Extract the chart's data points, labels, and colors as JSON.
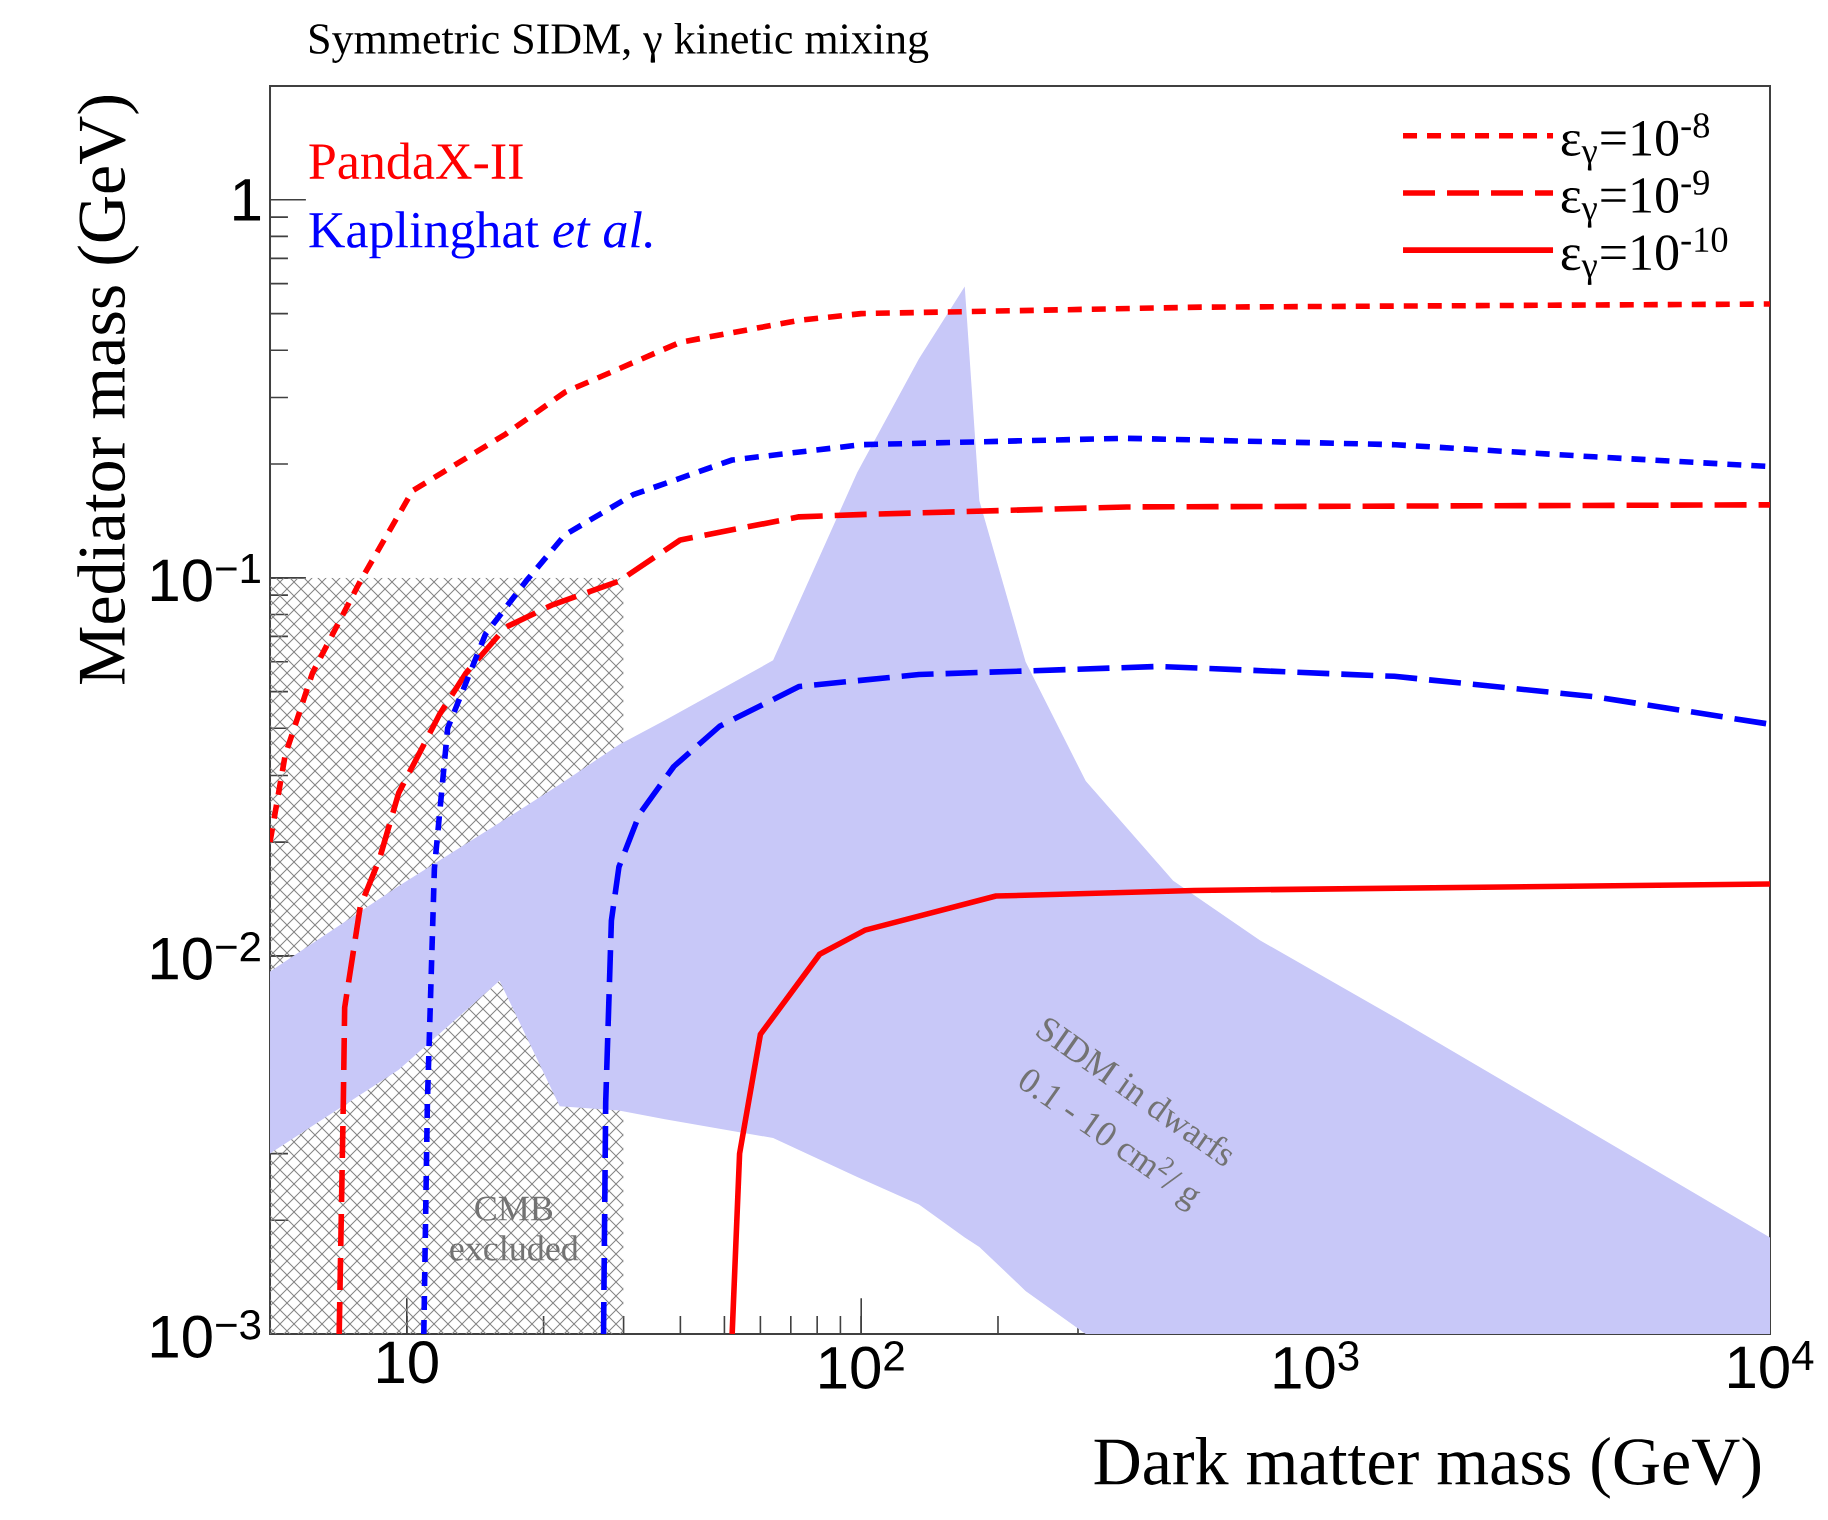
{
  "chart_data": {
    "type": "line",
    "title": "Symmetric SIDM, γ kinetic mixing",
    "xlabel": "Dark matter mass (GeV)",
    "ylabel": "Mediator mass (GeV)",
    "log": "xy",
    "xlim": [
      5,
      10000
    ],
    "ylim": [
      0.001,
      2
    ],
    "xticks": [
      10,
      {
        "value": 100,
        "label": "10$^{2}$"
      },
      {
        "value": 1000,
        "label": "10$^{3}$"
      },
      {
        "value": 10000,
        "label": "10$^{4}$"
      }
    ],
    "yticks": [
      {
        "value": 0.001,
        "label": "10$^{−3}$"
      },
      {
        "value": 0.01,
        "label": "10$^{−2}$"
      },
      {
        "value": 0.1,
        "label": "10$^{−1}$"
      },
      1
    ],
    "legend": "top right",
    "series": [
      {
        "type": "area",
        "color": "#808080",
        "x": [
          5,
          30
        ],
        "values": [
          0.1,
          0.1
        ]
      },
      {
        "type": "area",
        "color": "#c8c8f8",
        "x": [
          5,
          9.6,
          16,
          21.7,
          29.3,
          37,
          64,
          98,
          134,
          169,
          182,
          230,
          312,
          486,
          754,
          1520,
          10000,
          10000,
          312,
          230,
          182,
          169,
          134,
          98,
          64,
          37,
          29.3,
          21.7,
          16,
          9.6,
          5
        ],
        "values": [
          0.0091,
          0.0153,
          0.0225,
          0.0284,
          0.0362,
          0.042,
          0.0605,
          0.19,
          0.38,
          0.59,
          0.16,
          0.06,
          0.029,
          0.0158,
          0.011,
          0.0068,
          0.0018,
          0.001,
          0.001,
          0.0013,
          0.0017,
          0.0018,
          0.0022,
          0.0026,
          0.0033,
          0.0037,
          0.0039,
          0.004,
          0.0086,
          0.005,
          0.003
        ]
      },
      {
        "name": "ε$_{γ}$=10$^{-8}$",
        "color": "#ff0000",
        "line_style": "dotted",
        "x": [
          5,
          5.4,
          6.2,
          7.9,
          10.3,
          16.5,
          22.3,
          40,
          73,
          100,
          560,
          10000
        ],
        "values": [
          0.02,
          0.034,
          0.056,
          0.098,
          0.17,
          0.24,
          0.31,
          0.42,
          0.48,
          0.5,
          0.52,
          0.53
        ]
      },
      {
        "name": "ε$_{γ}$=10$^{-9}$",
        "color": "#ff0000",
        "line_style": "dashed",
        "x": [
          7.1,
          7.25,
          7.3,
          7.9,
          8.7,
          9.6,
          11.8,
          13.5,
          16.5,
          21,
          29.3,
          40,
          73,
          99,
          384,
          10000
        ],
        "values": [
          0.001,
          0.0041,
          0.0073,
          0.0135,
          0.018,
          0.027,
          0.0435,
          0.056,
          0.074,
          0.085,
          0.098,
          0.126,
          0.145,
          0.147,
          0.154,
          0.156
        ]
      },
      {
        "name": "ε$_{γ}$=10$^{-10}$",
        "color": "#ff0000",
        "line_style": "solid",
        "x": [
          52,
          54,
          60,
          81,
          102,
          198,
          540,
          10000
        ],
        "values": [
          0.001,
          0.003,
          0.0062,
          0.0101,
          0.0117,
          0.0144,
          0.0149,
          0.0155
        ]
      },
      {
        "color": "#0000ff",
        "line_style": "dotted",
        "x": [
          10.9,
          11.1,
          11.5,
          12.3,
          14.9,
          18.3,
          22.3,
          31.5,
          52,
          100,
          380,
          1500,
          4100,
          10000
        ],
        "values": [
          0.001,
          0.0041,
          0.017,
          0.04,
          0.071,
          0.098,
          0.13,
          0.166,
          0.205,
          0.225,
          0.234,
          0.225,
          0.209,
          0.197
        ]
      },
      {
        "color": "#0000ff",
        "line_style": "dashed",
        "x": [
          27.1,
          27.4,
          28.2,
          29.3,
          32.5,
          38.7,
          48.8,
          73,
          134,
          452,
          1490,
          4110,
          10000
        ],
        "values": [
          0.001,
          0.0041,
          0.0124,
          0.0172,
          0.0237,
          0.0317,
          0.0405,
          0.0516,
          0.0555,
          0.0583,
          0.0549,
          0.0485,
          0.041
        ]
      }
    ],
    "annotations": [
      "PandaX-II",
      "Kaplinghat *et al.*",
      "CMB excluded",
      "SIDM in dwarfs",
      "0.1 - 10 cm$^{2}$/ g"
    ]
  }
}
